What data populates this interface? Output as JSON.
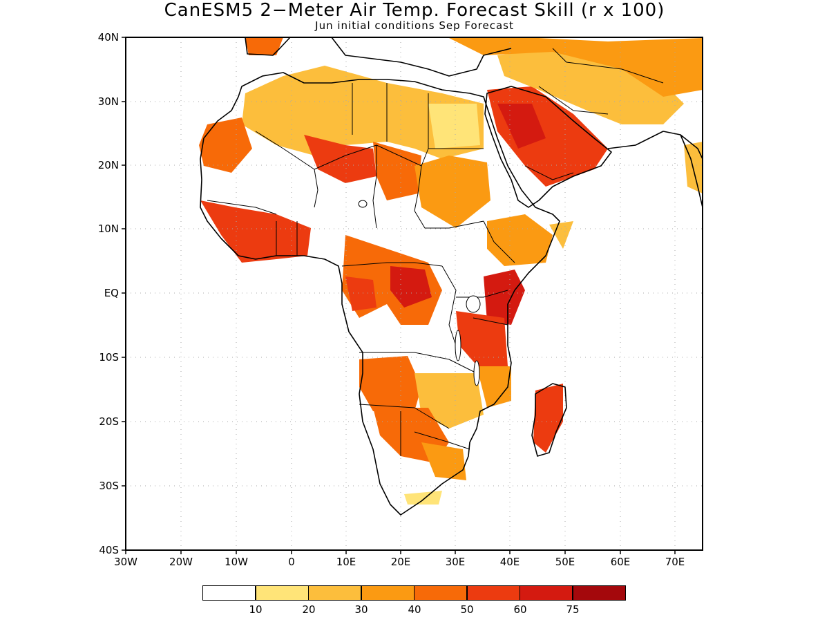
{
  "map": {
    "title": "CanESM5 2−Meter Air Temp. Forecast Skill (r x 100)",
    "subtitle": "Jun initial conditions  Sep Forecast",
    "lat_ticks": [
      "40N",
      "30N",
      "20N",
      "10N",
      "EQ",
      "10S",
      "20S",
      "30S",
      "40S"
    ],
    "lon_ticks": [
      "30W",
      "20W",
      "10W",
      "0",
      "10E",
      "20E",
      "30E",
      "40E",
      "50E",
      "60E",
      "70E"
    ],
    "extent": {
      "lon": [
        -30,
        75
      ],
      "lat": [
        -40,
        40
      ]
    },
    "gridlines": true,
    "colorbar": {
      "colors": [
        "#ffffff",
        "#ffe478",
        "#fcbe3c",
        "#fb9a12",
        "#f76a08",
        "#ec3b10",
        "#d41a10",
        "#a4080c"
      ],
      "labels": [
        "10",
        "20",
        "30",
        "40",
        "50",
        "60",
        "75"
      ]
    }
  }
}
